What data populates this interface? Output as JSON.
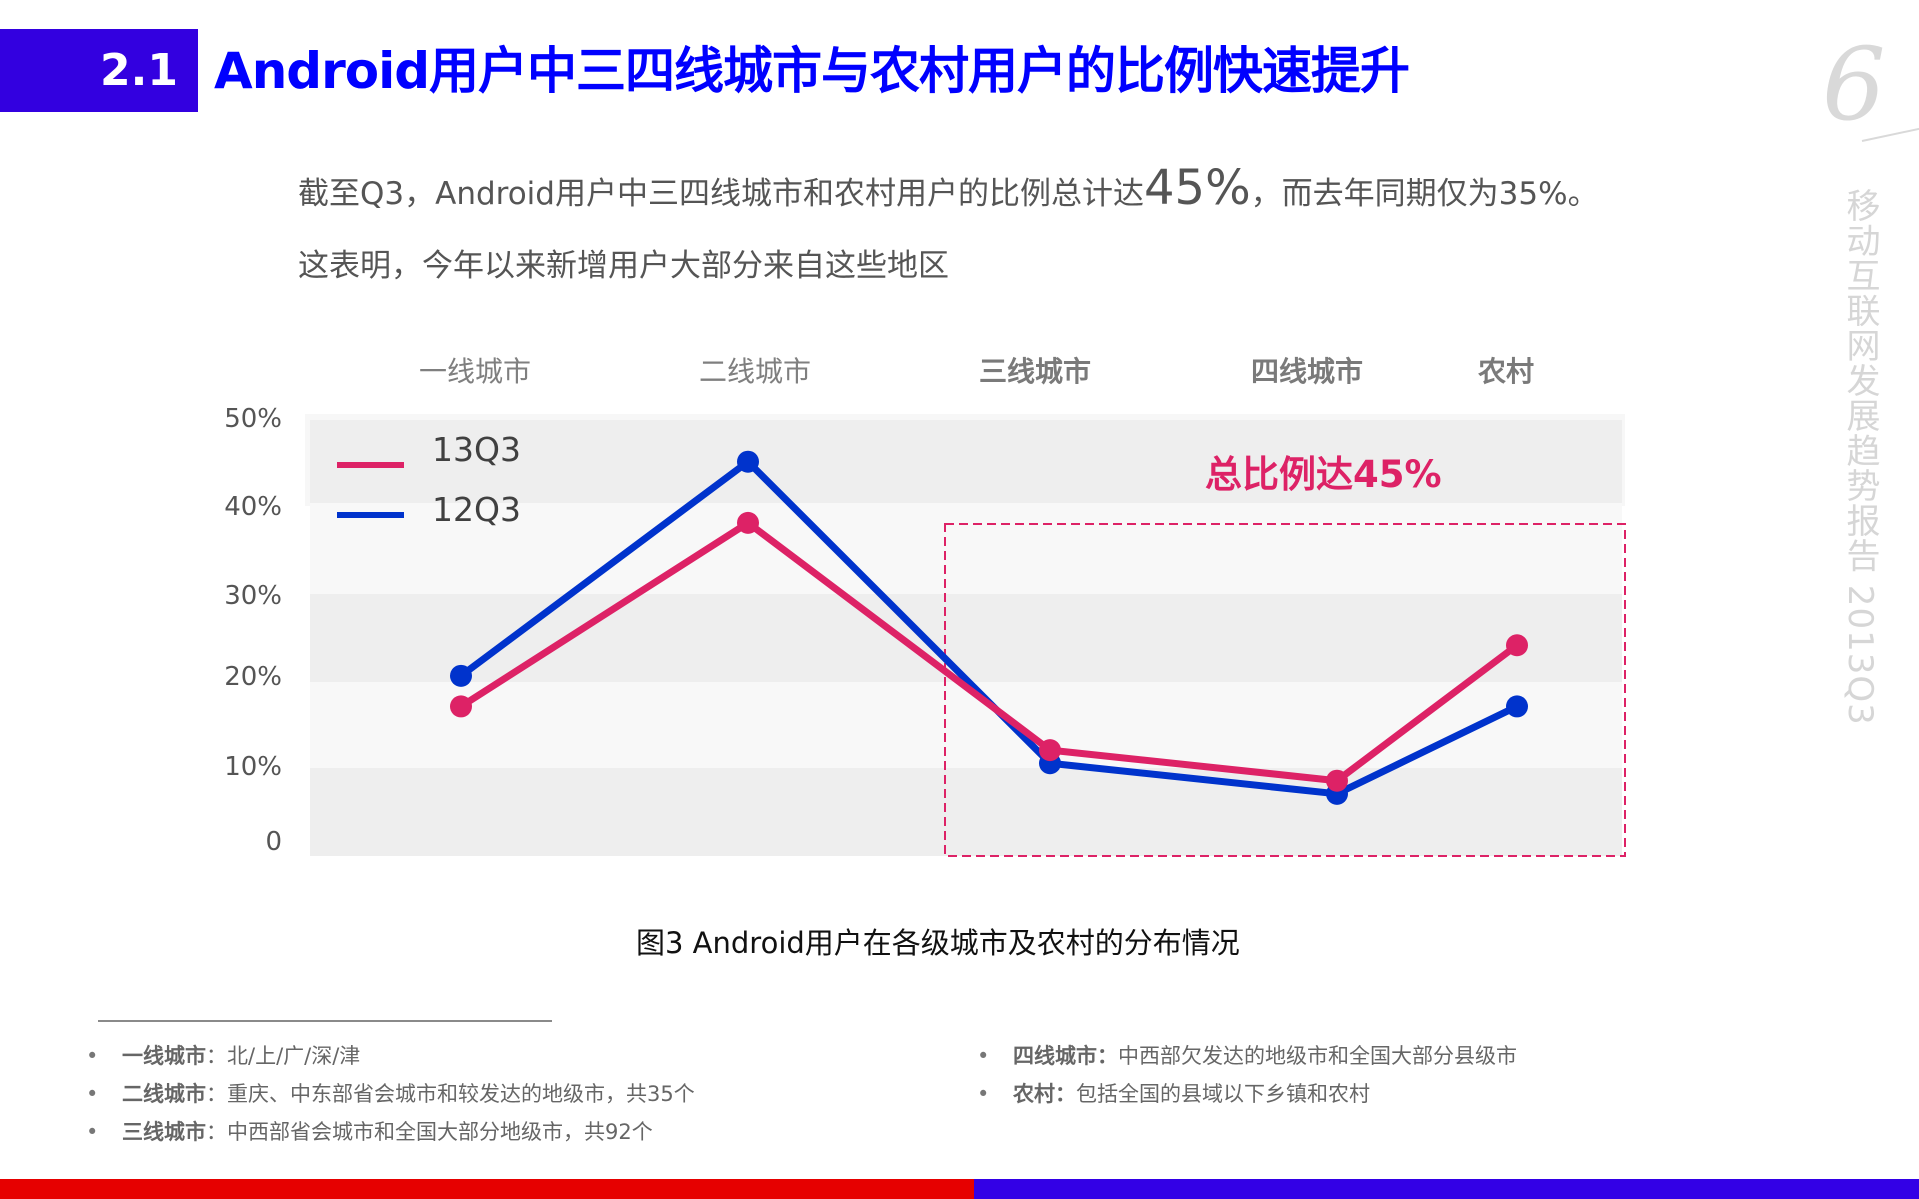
{
  "header": {
    "section_number": "2.1",
    "title": "Android用户中三四线城市与农村用户的比例快速提升",
    "page_number": "6",
    "side_text": "移动互联网发展趋势报告 2013Q3"
  },
  "summary": {
    "line1_prefix": "截至Q3，Android用户中三四线城市和农村用户的比例总计达",
    "line1_highlight": "45%",
    "line1_suffix": "，而去年同期仅为35%。",
    "line2": "这表明，今年以来新增用户大部分来自这些地区"
  },
  "chart_data": {
    "type": "line",
    "title": "",
    "caption": "图3 Android用户在各级城市及农村的分布情况",
    "categories": [
      "一线城市",
      "二线城市",
      "三线城市",
      "四线城市",
      "农村"
    ],
    "series": [
      {
        "name": "13Q3",
        "color": "#dd2266",
        "values": [
          17,
          38,
          12,
          8.5,
          24
        ]
      },
      {
        "name": "12Q3",
        "color": "#0033cc",
        "values": [
          20.5,
          45,
          10.5,
          7,
          17
        ]
      }
    ],
    "y_ticks": [
      "0",
      "10%",
      "20%",
      "30%",
      "40%",
      "50%"
    ],
    "ylim": [
      0,
      50
    ],
    "xlabel": "",
    "ylabel": "",
    "grid": "alternating bands",
    "legend_position": "top-left inside",
    "annotation": "总比例达45%",
    "highlight_box": "三线城市 to 农村"
  },
  "legend": [
    {
      "label": "13Q3",
      "color": "#dd2266"
    },
    {
      "label": "12Q3",
      "color": "#0033cc"
    }
  ],
  "footnotes": {
    "left": [
      {
        "key": "一线城市",
        "text": "：北/上/广/深/津"
      },
      {
        "key": "二线城市",
        "text": "：重庆、中东部省会城市和较发达的地级市，共35个"
      },
      {
        "key": "三线城市",
        "text": "：中西部省会城市和全国大部分地级市，共92个"
      }
    ],
    "right": [
      {
        "key": "四线城市：",
        "text": "中西部欠发达的地级市和全国大部分县级市"
      },
      {
        "key": "农村：",
        "text": "包括全国的县域以下乡镇和农村"
      }
    ],
    "bullet": "•"
  },
  "colors": {
    "brand_blue": "#3300e0",
    "title_blue": "#0000ff",
    "accent_pink": "#dd2266",
    "series_blue": "#0033cc",
    "footer_red": "#e60000"
  }
}
